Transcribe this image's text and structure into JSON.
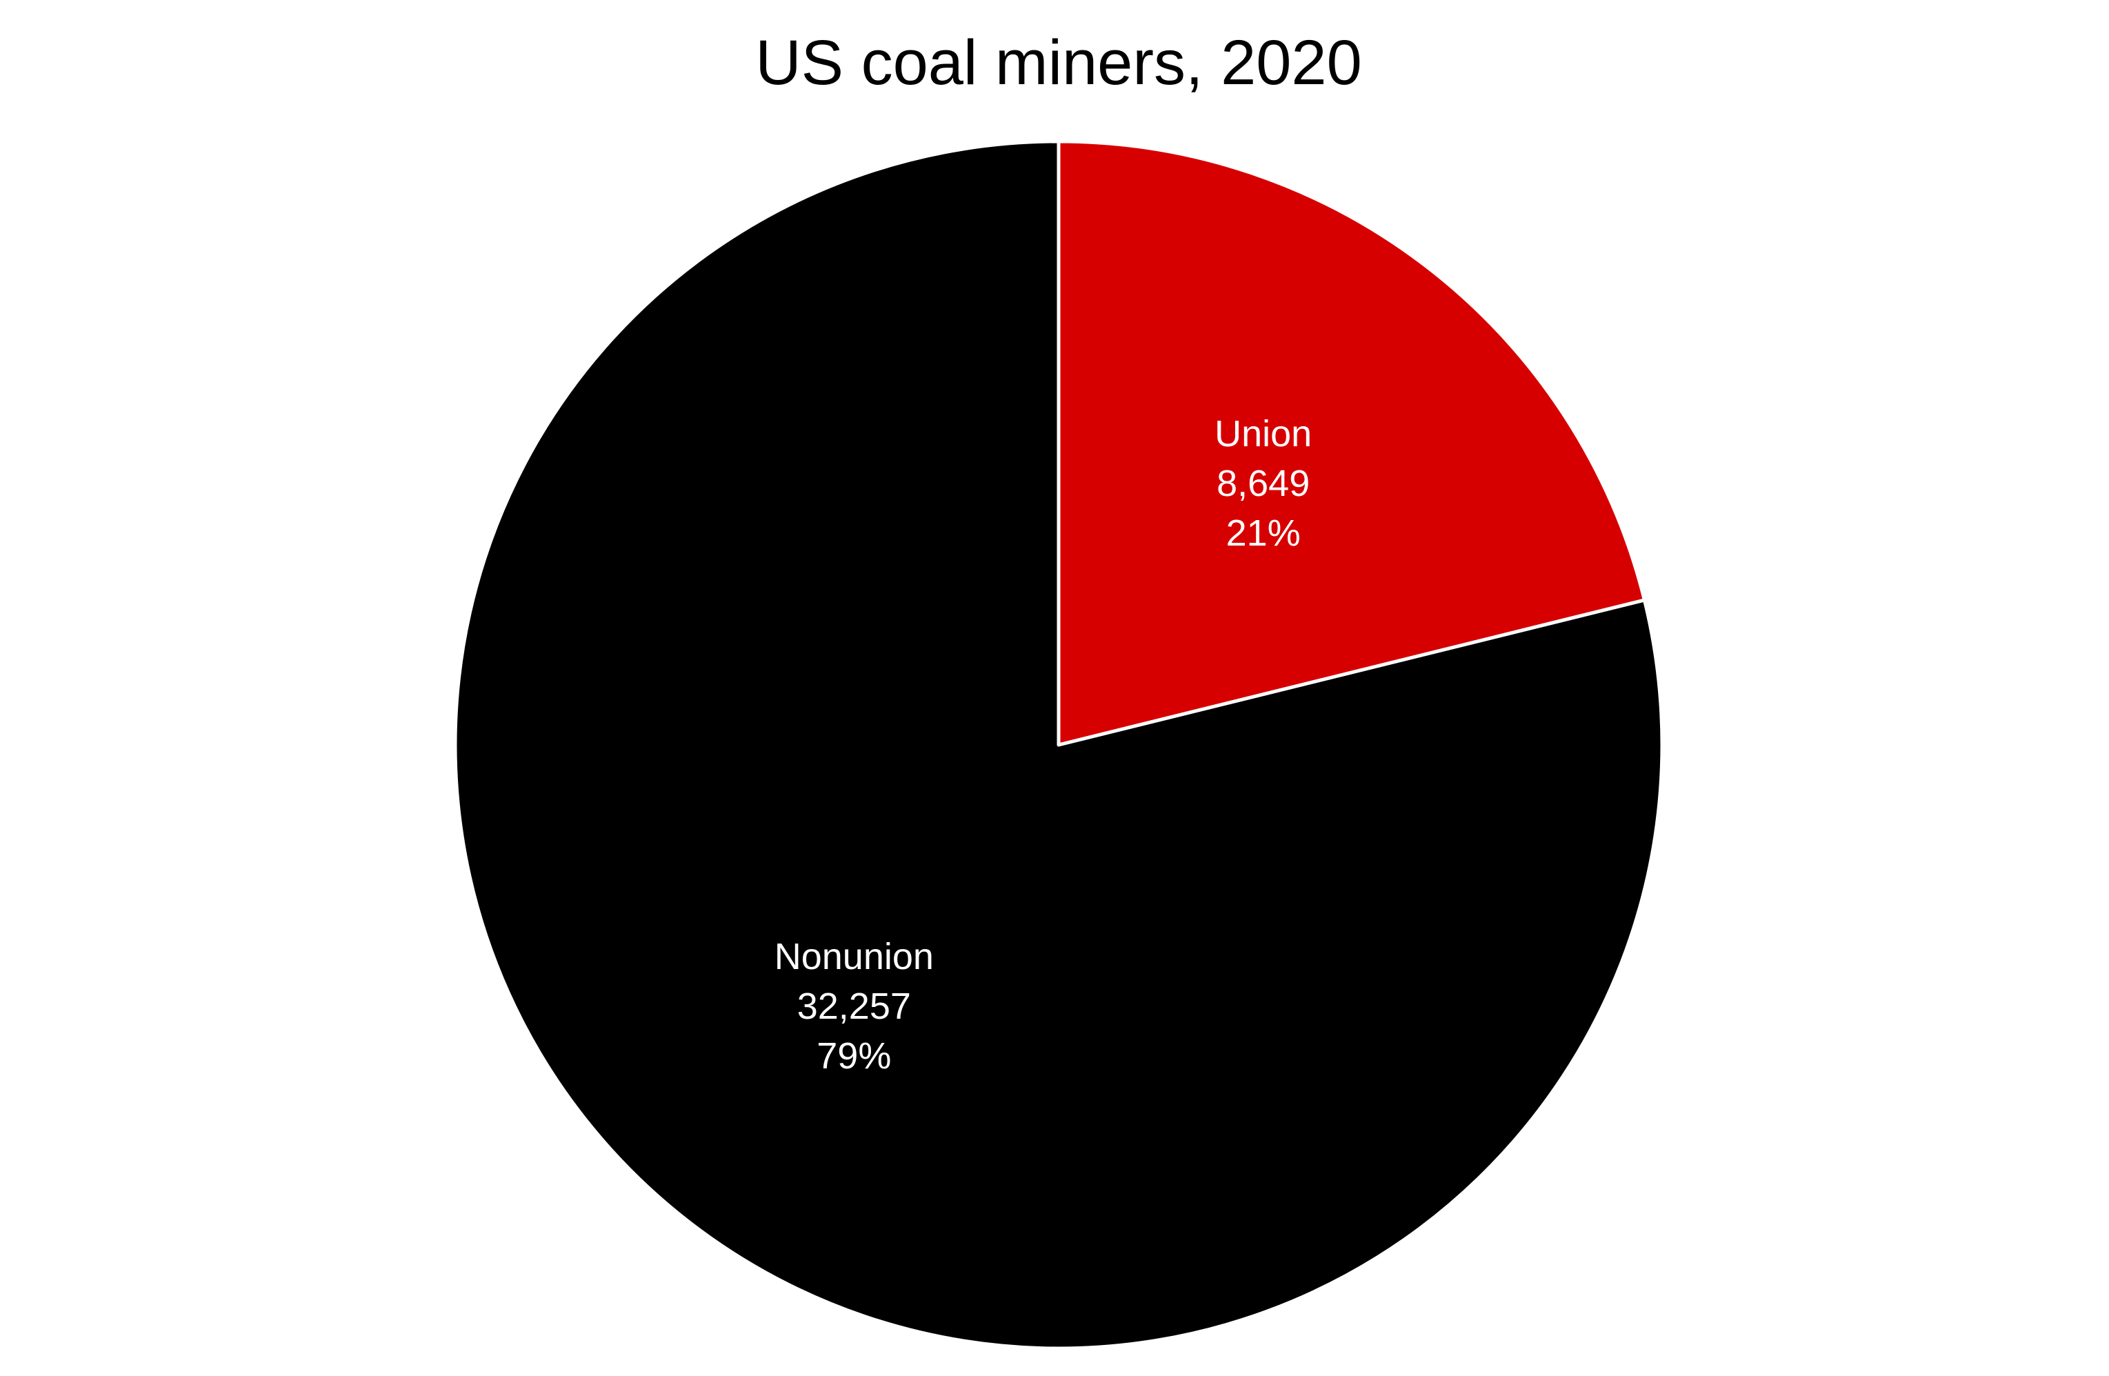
{
  "chart_data": {
    "type": "pie",
    "title": "US coal miners, 2020",
    "start_angle_deg": 0,
    "direction": "clockwise",
    "slice_border_color": "#ffffff",
    "slices": [
      {
        "label": "Union",
        "value": 8649,
        "value_label": "8,649",
        "percent_label": "21%",
        "color": "#d70000"
      },
      {
        "label": "Nonunion",
        "value": 32257,
        "value_label": "32,257",
        "percent_label": "79%",
        "color": "#000000"
      }
    ]
  }
}
